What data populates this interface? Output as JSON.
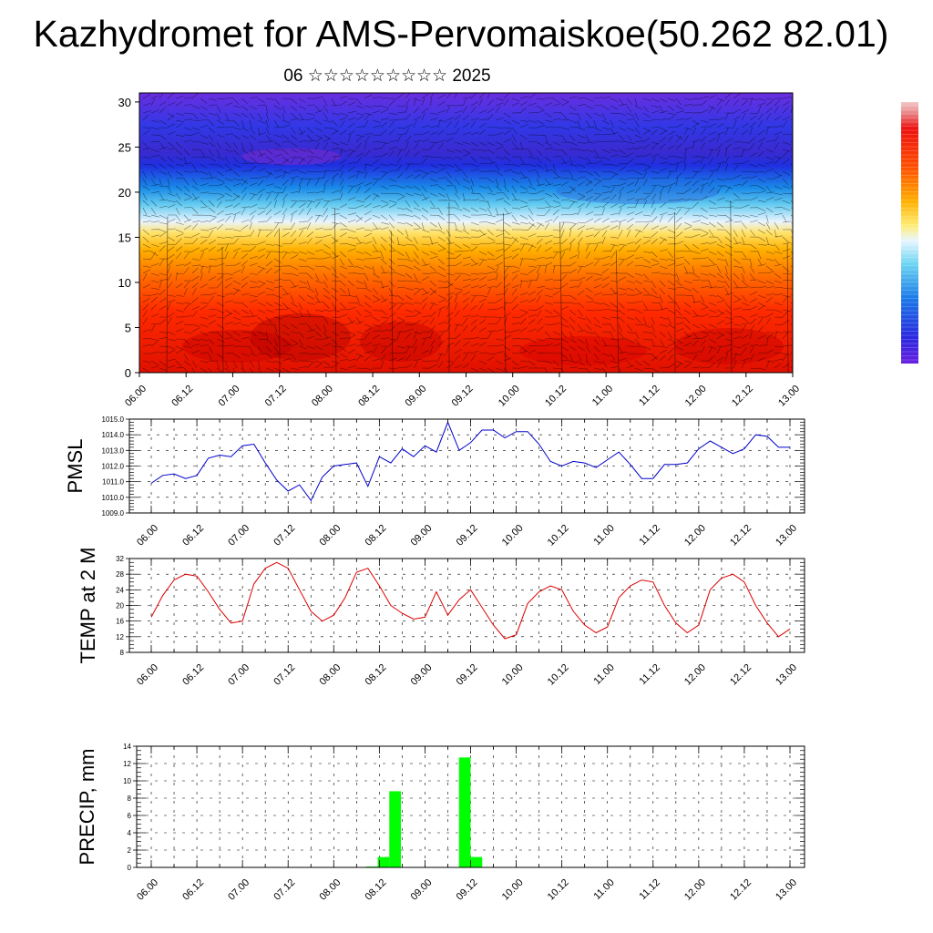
{
  "title": "Kazhydromet for AMS-Pervomaiskoe(50.262 82.01)",
  "subtitle": "06 ☆☆☆☆☆☆☆☆☆ 2025",
  "colors": {
    "pmsl_line": "#0000cc",
    "temp_line": "#dd0000",
    "precip_bar": "#00ff00",
    "cross_section_top": "#5a1fd6",
    "cross_section_mid": "#fff07a",
    "cross_section_bottom": "#ff1a00"
  },
  "chart_data": [
    {
      "type": "heatmap",
      "name": "cross-section",
      "x_ticks": [
        "06.00",
        "06.12",
        "07.00",
        "07.12",
        "08.00",
        "08.12",
        "09.00",
        "09.12",
        "10.00",
        "10.12",
        "11.00",
        "11.12",
        "12.00",
        "12.12",
        "13.00"
      ],
      "y_ticks": [
        "0",
        "5",
        "10",
        "15",
        "20",
        "25",
        "30"
      ],
      "ylim": [
        0,
        31
      ],
      "color_bands_bottom_to_top": [
        "dark red",
        "red",
        "orange",
        "yellow",
        "light blue",
        "blue",
        "violet"
      ]
    },
    {
      "type": "line",
      "ylabel": "PMSL",
      "ylim": [
        1009.0,
        1015.0
      ],
      "y_ticks": [
        "1009.0",
        "1010.0",
        "1011.0",
        "1012.0",
        "1013.0",
        "1014.0",
        "1015.0"
      ],
      "x_ticks": [
        "06.00",
        "06.12",
        "07.00",
        "07.12",
        "08.00",
        "08.12",
        "09.00",
        "09.12",
        "10.00",
        "10.12",
        "11.00",
        "11.12",
        "12.00",
        "12.12",
        "13.00"
      ],
      "series": [
        {
          "values": [
            1010.9,
            1011.4,
            1011.5,
            1011.2,
            1011.4,
            1012.5,
            1012.7,
            1012.6,
            1013.3,
            1013.4,
            1012.2,
            1011.1,
            1010.4,
            1010.8,
            1009.8,
            1011.3,
            1012.0,
            1012.1,
            1012.2,
            1010.7,
            1012.6,
            1012.2,
            1013.1,
            1012.6,
            1013.3,
            1012.9,
            1014.8,
            1013.0,
            1013.5,
            1014.3,
            1014.3,
            1013.8,
            1014.2,
            1014.2,
            1013.4,
            1012.3,
            1012.0,
            1012.3,
            1012.2,
            1011.9,
            1012.4,
            1012.9,
            1012.1,
            1011.2,
            1011.2,
            1012.1,
            1012.1,
            1012.2,
            1013.1,
            1013.6,
            1013.2,
            1012.8,
            1013.1,
            1014.0,
            1013.9,
            1013.2,
            1013.2
          ]
        }
      ]
    },
    {
      "type": "line",
      "ylabel": "TEMP at 2 M",
      "ylim": [
        8,
        32
      ],
      "y_ticks": [
        "8",
        "12",
        "16",
        "20",
        "24",
        "28",
        "32"
      ],
      "x_ticks": [
        "06.00",
        "06.12",
        "07.00",
        "07.12",
        "08.00",
        "08.12",
        "09.00",
        "09.12",
        "10.00",
        "10.12",
        "11.00",
        "11.12",
        "12.00",
        "12.12",
        "13.00"
      ],
      "series": [
        {
          "values": [
            17.0,
            22.5,
            26.5,
            28.0,
            27.5,
            23.5,
            19.0,
            15.5,
            16.0,
            25.5,
            29.5,
            31.0,
            29.5,
            24.0,
            18.5,
            16.0,
            17.5,
            22.0,
            28.5,
            29.5,
            25.0,
            20.0,
            18.0,
            16.5,
            17.0,
            23.5,
            17.5,
            21.5,
            24.0,
            19.5,
            15.0,
            11.5,
            12.5,
            20.5,
            23.5,
            25.0,
            24.0,
            18.5,
            15.0,
            13.0,
            14.5,
            22.0,
            25.0,
            26.5,
            26.0,
            20.0,
            15.5,
            13.0,
            15.0,
            24.0,
            27.0,
            28.0,
            26.0,
            20.0,
            15.5,
            12.0,
            14.0
          ]
        }
      ]
    },
    {
      "type": "bar",
      "ylabel": "PRECIP, mm",
      "ylim": [
        0,
        14
      ],
      "y_ticks": [
        "0",
        "2",
        "4",
        "6",
        "8",
        "10",
        "12",
        "14"
      ],
      "x_ticks": [
        "06.00",
        "06.12",
        "07.00",
        "07.12",
        "08.00",
        "08.12",
        "09.00",
        "09.12",
        "10.00",
        "10.12",
        "11.00",
        "11.12",
        "12.00",
        "12.12",
        "13.00"
      ],
      "values": [
        0,
        0,
        0,
        0,
        0,
        0,
        0,
        0,
        0,
        0,
        0,
        0,
        0,
        0,
        0,
        0,
        0,
        0,
        0,
        0.1,
        1.2,
        8.8,
        0,
        0,
        0,
        0,
        0,
        12.7,
        1.2,
        0,
        0,
        0,
        0,
        0,
        0,
        0,
        0,
        0,
        0,
        0,
        0,
        0,
        0,
        0,
        0,
        0,
        0,
        0,
        0,
        0,
        0,
        0,
        0,
        0,
        0,
        0
      ]
    }
  ]
}
